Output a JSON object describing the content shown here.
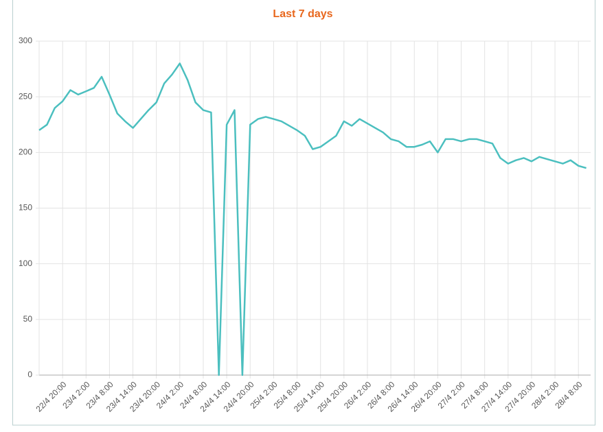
{
  "chart_data": {
    "type": "line",
    "title": "Last 7 days",
    "categories": [
      null,
      null,
      null,
      "22/4 20:00",
      null,
      null,
      "23/4 2:00",
      null,
      null,
      "23/4 8:00",
      null,
      null,
      "23/4 14:00",
      null,
      null,
      "23/4 20:00",
      null,
      null,
      "24/4 2:00",
      null,
      null,
      "24/4 8:00",
      null,
      null,
      "24/4 14:00",
      null,
      null,
      "24/4 20:00",
      null,
      null,
      "25/4 2:00",
      null,
      null,
      "25/4 8:00",
      null,
      null,
      "25/4 14:00",
      null,
      null,
      "25/4 20:00",
      null,
      null,
      "26/4 2:00",
      null,
      null,
      "26/4 8:00",
      null,
      null,
      "26/4 14:00",
      null,
      null,
      "26/4 20:00",
      null,
      null,
      "27/4 2:00",
      null,
      null,
      "27/4 8:00",
      null,
      null,
      "27/4 14:00",
      null,
      null,
      "27/4 20:00",
      null,
      null,
      "28/4 2:00",
      null,
      null,
      "28/4 8:00",
      null
    ],
    "values": [
      220,
      225,
      240,
      246,
      256,
      252,
      255,
      258,
      268,
      252,
      235,
      228,
      222,
      230,
      238,
      245,
      262,
      270,
      280,
      265,
      245,
      238,
      236,
      0,
      225,
      238,
      0,
      225,
      230,
      232,
      230,
      228,
      224,
      220,
      215,
      203,
      205,
      210,
      215,
      228,
      224,
      230,
      226,
      222,
      218,
      212,
      210,
      205,
      205,
      207,
      210,
      200,
      212,
      212,
      210,
      212,
      212,
      210,
      208,
      195,
      190,
      193,
      195,
      192,
      196,
      194,
      192,
      190,
      193,
      188,
      186
    ],
    "color": "#4bbfbf",
    "title_color": "#e8671d",
    "ylim": [
      0,
      300
    ],
    "yticks": [
      0,
      50,
      100,
      150,
      200,
      250,
      300
    ],
    "grid": true
  }
}
